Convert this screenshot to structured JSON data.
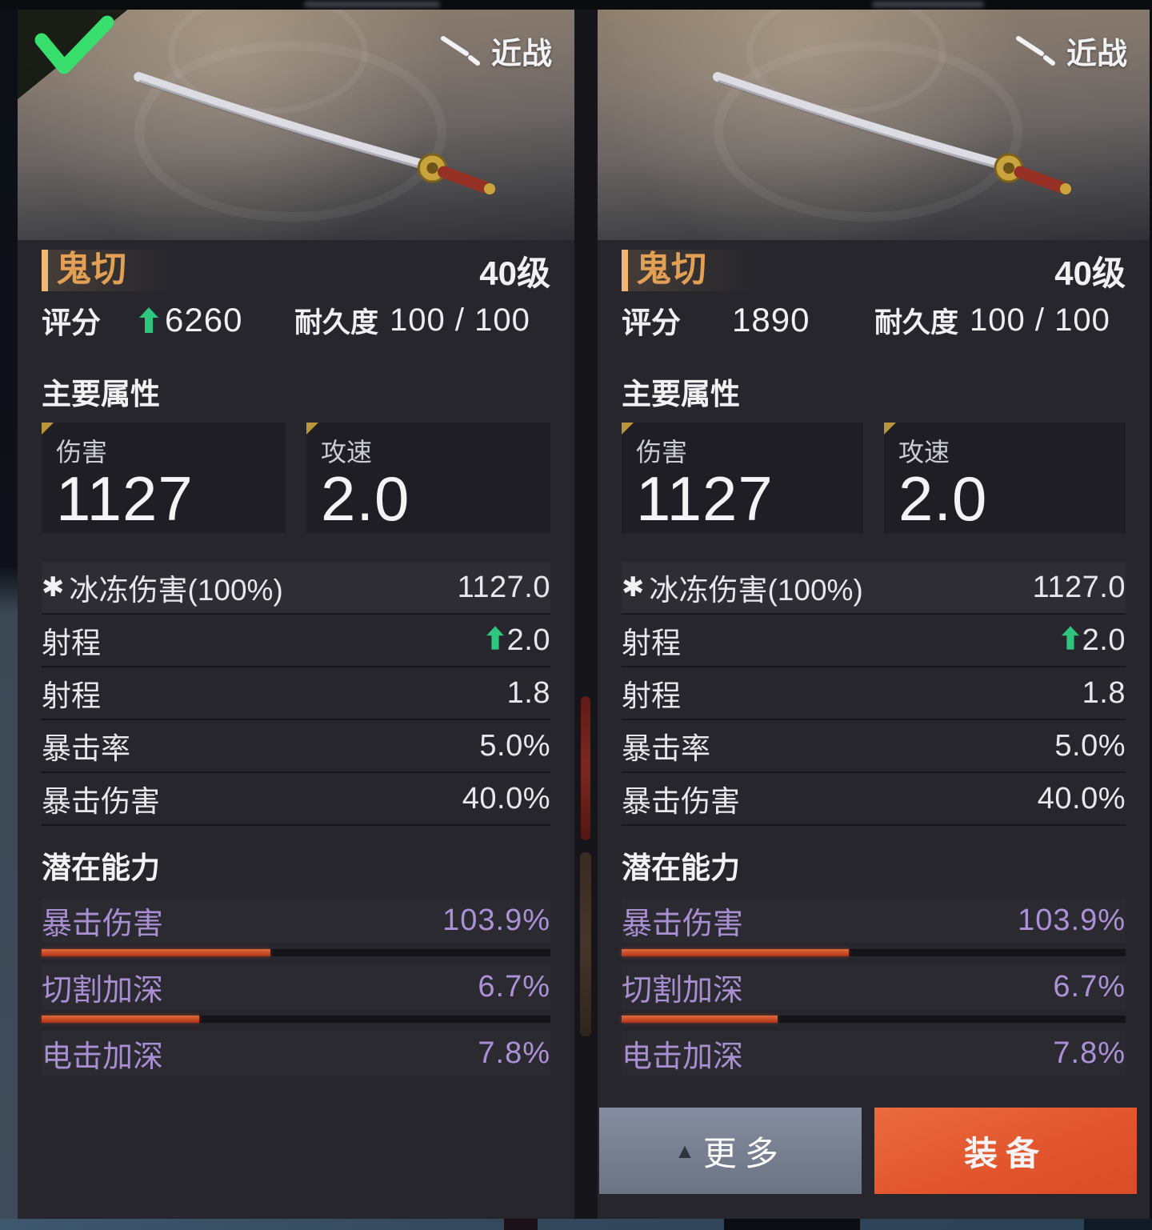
{
  "weapon_type_label": "近战",
  "buttons": {
    "more": "更多",
    "equip": "装备"
  },
  "panels": [
    {
      "selected": true,
      "title": "鬼切",
      "level": "40级",
      "rating_label": "评分",
      "rating_value": "6260",
      "rating_increase": true,
      "durability_label": "耐久度",
      "durability_value": "100 / 100",
      "main_section_title": "主要属性",
      "main_stats": [
        {
          "label": "伤害",
          "value": "1127"
        },
        {
          "label": "攻速",
          "value": "2.0"
        }
      ],
      "stat_rows": [
        {
          "icon": "✱",
          "label": "冰冻伤害(100%)",
          "value": "1127.0",
          "increase": false
        },
        {
          "label": "射程",
          "value": "2.0",
          "increase": true
        },
        {
          "label": "射程",
          "value": "1.8",
          "increase": false
        },
        {
          "label": "暴击率",
          "value": "5.0%",
          "increase": false
        },
        {
          "label": "暴击伤害",
          "value": "40.0%",
          "increase": false
        }
      ],
      "potential_section_title": "潜在能力",
      "potential_rows": [
        {
          "label": "暴击伤害",
          "value": "103.9%",
          "bar_pct": 45
        },
        {
          "label": "切割加深",
          "value": "6.7%",
          "bar_pct": 31
        },
        {
          "label": "电击加深",
          "value": "7.8%",
          "bar_pct": 0
        }
      ]
    },
    {
      "selected": false,
      "title": "鬼切",
      "level": "40级",
      "rating_label": "评分",
      "rating_value": "1890",
      "rating_increase": false,
      "durability_label": "耐久度",
      "durability_value": "100 / 100",
      "main_section_title": "主要属性",
      "main_stats": [
        {
          "label": "伤害",
          "value": "1127"
        },
        {
          "label": "攻速",
          "value": "2.0"
        }
      ],
      "stat_rows": [
        {
          "icon": "✱",
          "label": "冰冻伤害(100%)",
          "value": "1127.0",
          "increase": false
        },
        {
          "label": "射程",
          "value": "2.0",
          "increase": true
        },
        {
          "label": "射程",
          "value": "1.8",
          "increase": false
        },
        {
          "label": "暴击率",
          "value": "5.0%",
          "increase": false
        },
        {
          "label": "暴击伤害",
          "value": "40.0%",
          "increase": false
        }
      ],
      "potential_section_title": "潜在能力",
      "potential_rows": [
        {
          "label": "暴击伤害",
          "value": "103.9%",
          "bar_pct": 45
        },
        {
          "label": "切割加深",
          "value": "6.7%",
          "bar_pct": 31
        },
        {
          "label": "电击加深",
          "value": "7.8%",
          "bar_pct": 0
        }
      ]
    }
  ],
  "colors": {
    "panel_bg": "#26262c",
    "name_accent": "#e2a055",
    "potential_text": "#a78fd2",
    "upgrade_green": "#2fc57f",
    "bar_fill": "#c84a28",
    "more_button": "#7e8695",
    "equip_button": "#e1562f"
  }
}
